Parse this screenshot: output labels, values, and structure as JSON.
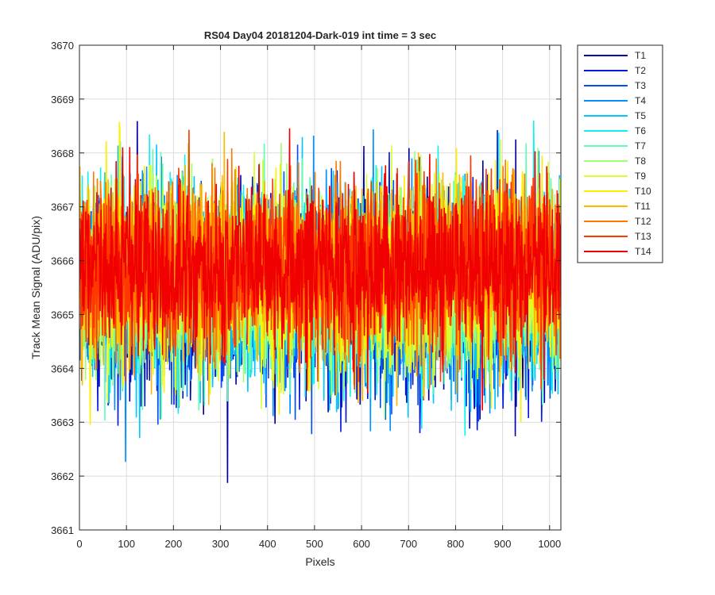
{
  "chart_data": {
    "type": "line",
    "title": "RS04 Day04 20181204-Dark-019 int time = 3 sec",
    "xlabel": "Pixels",
    "ylabel": "Track Mean Signal (ADU/pix)",
    "xlim": [
      0,
      1024
    ],
    "ylim": [
      3661,
      3670
    ],
    "xticks": [
      0,
      100,
      200,
      300,
      400,
      500,
      600,
      700,
      800,
      900,
      1000
    ],
    "yticks": [
      3661,
      3662,
      3663,
      3664,
      3665,
      3666,
      3667,
      3668,
      3669,
      3670
    ],
    "grid": true,
    "legend_position": "outside-top-right",
    "series": [
      {
        "name": "T1",
        "color": "#0000a8",
        "mean": 3665.4,
        "sd": 0.9
      },
      {
        "name": "T2",
        "color": "#0018d8",
        "mean": 3665.4,
        "sd": 0.9
      },
      {
        "name": "T3",
        "color": "#0050f0",
        "mean": 3665.5,
        "sd": 0.9
      },
      {
        "name": "T4",
        "color": "#0090ff",
        "mean": 3665.5,
        "sd": 0.9
      },
      {
        "name": "T5",
        "color": "#00c8ff",
        "mean": 3665.5,
        "sd": 0.9
      },
      {
        "name": "T6",
        "color": "#10f0f0",
        "mean": 3665.6,
        "sd": 0.9
      },
      {
        "name": "T7",
        "color": "#60ffb0",
        "mean": 3665.6,
        "sd": 0.9
      },
      {
        "name": "T8",
        "color": "#a0ff70",
        "mean": 3665.6,
        "sd": 0.85
      },
      {
        "name": "T9",
        "color": "#d8ff30",
        "mean": 3665.7,
        "sd": 0.85
      },
      {
        "name": "T10",
        "color": "#ffee00",
        "mean": 3665.8,
        "sd": 0.85
      },
      {
        "name": "T11",
        "color": "#ffb800",
        "mean": 3665.8,
        "sd": 0.8
      },
      {
        "name": "T12",
        "color": "#ff7800",
        "mean": 3665.9,
        "sd": 0.8
      },
      {
        "name": "T13",
        "color": "#ff3800",
        "mean": 3665.9,
        "sd": 0.8
      },
      {
        "name": "T14",
        "color": "#f00000",
        "mean": 3665.9,
        "sd": 0.75
      }
    ]
  }
}
